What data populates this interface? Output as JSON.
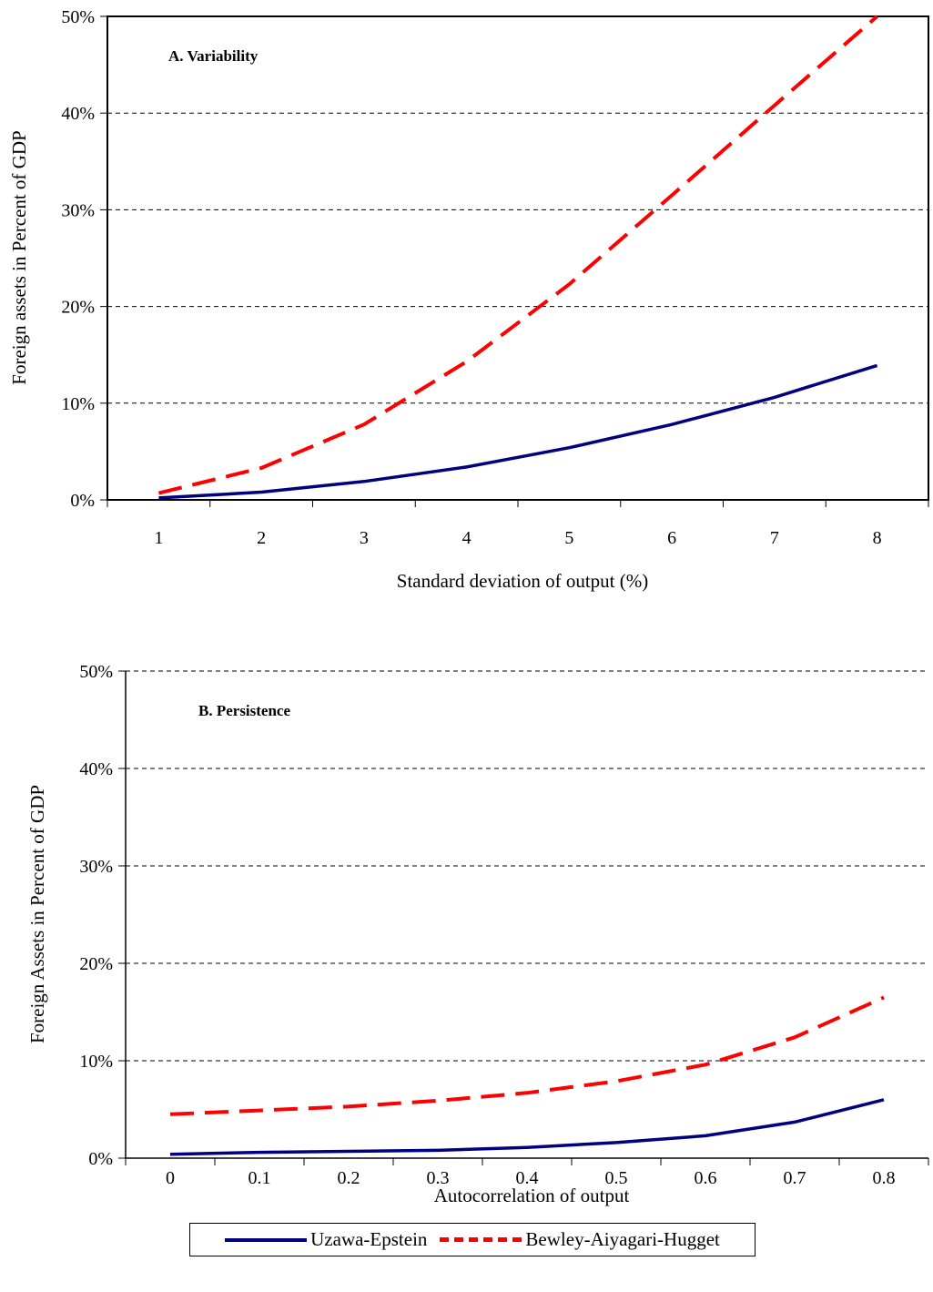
{
  "chart_data": [
    {
      "type": "line",
      "title": "A. Variability",
      "xlabel": "Standard deviation of output (%)",
      "ylabel": "Foreign assets in Percent of GDP",
      "categories": [
        "1",
        "2",
        "3",
        "4",
        "5",
        "6",
        "7",
        "8"
      ],
      "ylim": [
        0,
        50
      ],
      "yticks": [
        "0%",
        "10%",
        "20%",
        "30%",
        "40%",
        "50%"
      ],
      "grid": "horizontal dashed",
      "series": [
        {
          "name": "Uzawa-Epstein",
          "color": "#000080",
          "values": [
            0.2,
            0.8,
            1.9,
            3.4,
            5.4,
            7.8,
            10.6,
            13.9
          ]
        },
        {
          "name": "Bewley-Aiyagari-Hugget",
          "color": "#ff0000",
          "values": [
            0.7,
            3.3,
            7.8,
            14.3,
            22.3,
            31.5,
            40.8,
            50.0
          ]
        }
      ]
    },
    {
      "type": "line",
      "title": "B. Persistence",
      "xlabel": "Autocorrelation of output",
      "ylabel": "Foreign Assets in Percent of GDP",
      "categories": [
        "0",
        "0.1",
        "0.2",
        "0.3",
        "0.4",
        "0.5",
        "0.6",
        "0.7",
        "0.8"
      ],
      "ylim": [
        0,
        50
      ],
      "yticks": [
        "0%",
        "10%",
        "20%",
        "30%",
        "40%",
        "50%"
      ],
      "grid": "horizontal dashed",
      "series": [
        {
          "name": "Uzawa-Epstein",
          "color": "#000080",
          "values": [
            0.4,
            0.6,
            0.7,
            0.8,
            1.1,
            1.6,
            2.3,
            3.7,
            6.0
          ]
        },
        {
          "name": "Bewley-Aiyagari-Hugget",
          "color": "#ff0000",
          "values": [
            4.5,
            4.9,
            5.3,
            5.9,
            6.7,
            7.9,
            9.6,
            12.4,
            16.5
          ]
        }
      ]
    }
  ],
  "legend": {
    "items": [
      {
        "label": "Uzawa-Epstein",
        "color": "#000080"
      },
      {
        "label": "Bewley-Aiyagari-Hugget",
        "color": "#ff0000"
      }
    ]
  }
}
